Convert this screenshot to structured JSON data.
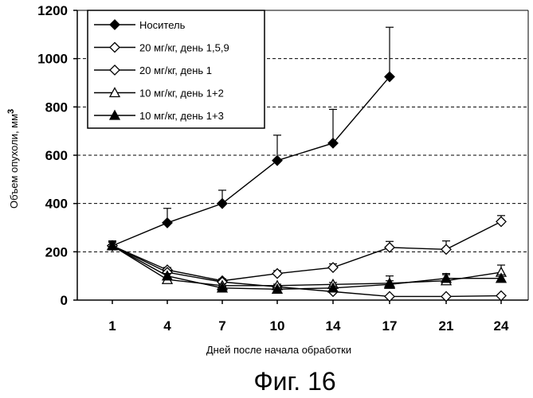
{
  "chart_data": {
    "type": "line",
    "ylabel": "Объем опухоли, мм",
    "ylabel_sup": "3",
    "xlabel": "Дней после начала обработки",
    "caption": "Фиг. 16",
    "categories": [
      "1",
      "4",
      "7",
      "10",
      "14",
      "17",
      "21",
      "24"
    ],
    "ylim": [
      0,
      1200
    ],
    "yticks": [
      "0",
      "200",
      "400",
      "600",
      "800",
      "1000",
      "1200"
    ],
    "grid": "horizontal-dashed",
    "legend_position": "top-left",
    "series": [
      {
        "name": "Носитель",
        "marker": "diamond-filled",
        "values": [
          225,
          320,
          400,
          578,
          650,
          925,
          null,
          null
        ],
        "errors": [
          20,
          60,
          55,
          105,
          140,
          205,
          null,
          null
        ]
      },
      {
        "name": "20 мг/кг, день 1,5,9",
        "marker": "diamond-open",
        "values": [
          225,
          125,
          80,
          110,
          135,
          218,
          210,
          325
        ],
        "errors": [
          20,
          10,
          8,
          12,
          15,
          25,
          35,
          25
        ]
      },
      {
        "name": "20 мг/кг, день 1",
        "marker": "diamond-open",
        "values": [
          225,
          115,
          75,
          55,
          35,
          15,
          15,
          18
        ],
        "errors": [
          15,
          8,
          6,
          5,
          4,
          3,
          3,
          3
        ]
      },
      {
        "name": "10 мг/кг, день 1+2",
        "marker": "triangle-open",
        "values": [
          225,
          85,
          60,
          60,
          65,
          70,
          80,
          115
        ],
        "errors": [
          15,
          8,
          7,
          6,
          8,
          30,
          25,
          30
        ]
      },
      {
        "name": "10 мг/кг, день 1+3",
        "marker": "triangle-filled",
        "values": [
          225,
          100,
          50,
          45,
          50,
          65,
          90,
          90
        ],
        "errors": [
          15,
          10,
          6,
          6,
          7,
          15,
          20,
          15
        ]
      }
    ]
  }
}
